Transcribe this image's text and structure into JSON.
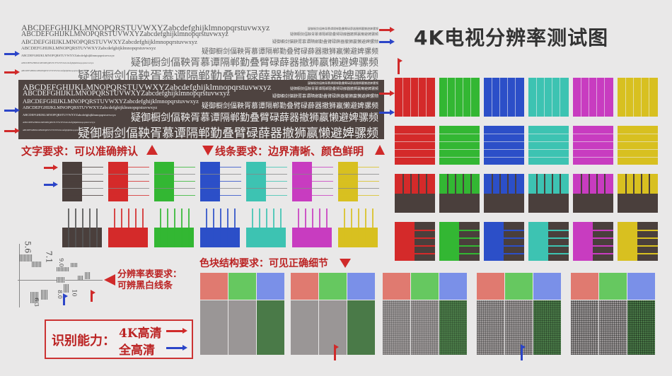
{
  "title": "4K电视分辨率测试图",
  "latin_sample": "ABCDEFGHIJKLMNOPQRSTUVWXYZabcdefghijklmnopqrstuvwxyz",
  "cjk_sample": "疑御橱剑偪鞅胥慕谭隔郸勤叠臂碌薛器撤狮嬴懒避婢骡频",
  "text_requirement": "文字要求：可以准确辨认",
  "line_requirement": "线条要求：边界清晰、颜色鲜明",
  "block_requirement": "色块结构要求：可见正确细节",
  "resolution_requirement": [
    "分辨率表要求：",
    "可辨黑白线条"
  ],
  "capability": {
    "label": "识别能力：",
    "uhd": "4K高清",
    "fhd": "全高清"
  },
  "resolution_numbers": [
    "5.6",
    "7.1",
    "9.0",
    "6.3",
    "8.0",
    "10"
  ],
  "colors": {
    "red_arrow": "#d02a2a",
    "blue_arrow": "#2c45c8",
    "palette": [
      "#4a3f3c",
      "#d42a2a",
      "#33b733",
      "#2c4fc8",
      "#3dc3b2",
      "#c83cc0",
      "#d8c020"
    ]
  }
}
